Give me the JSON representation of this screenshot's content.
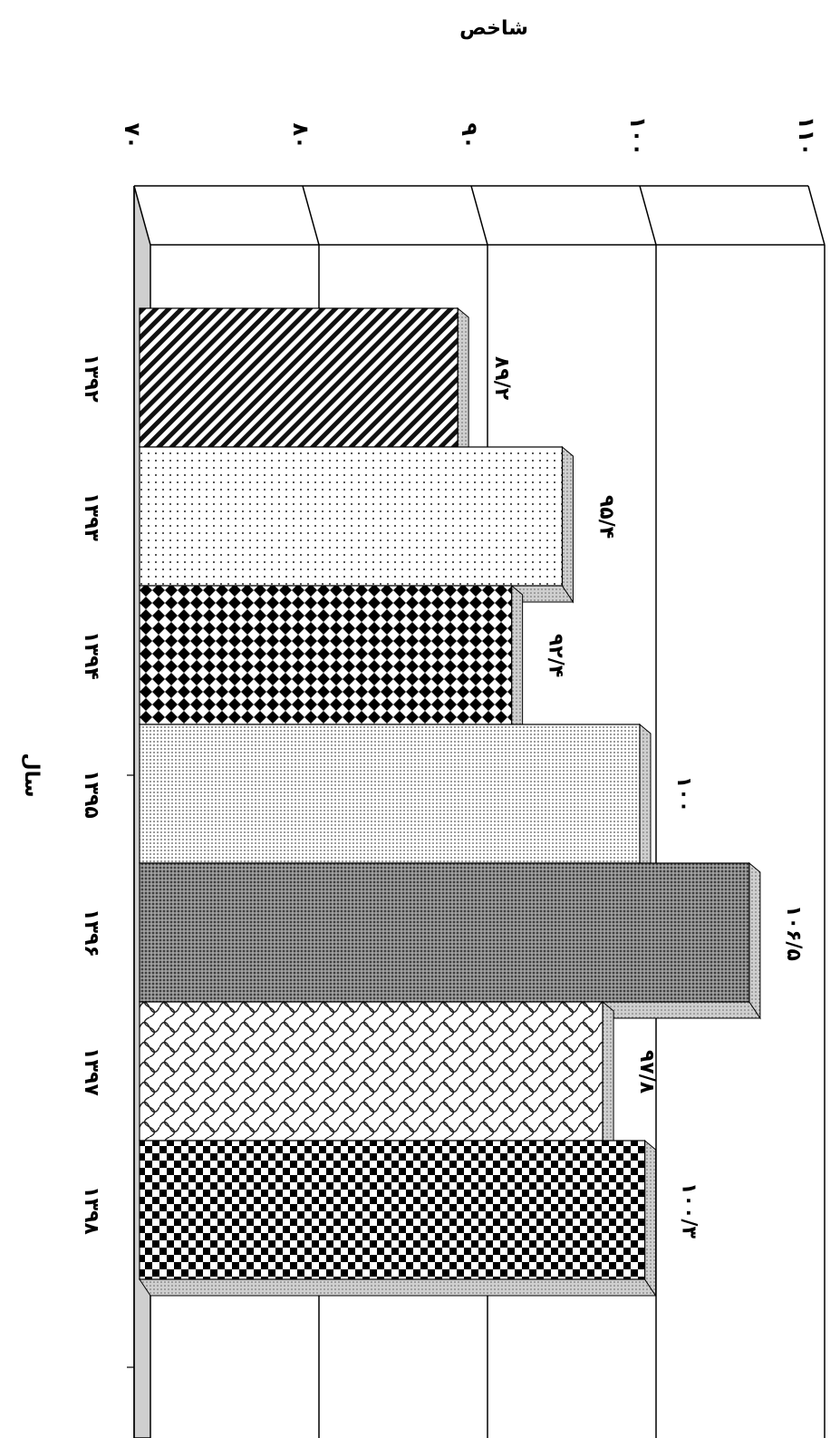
{
  "chart_data": {
    "type": "bar",
    "orientation": "horizontal",
    "categories": [
      "۱۳۹۲",
      "۱۳۹۳",
      "۱۳۹۴",
      "۱۳۹۵",
      "۱۳۹۶",
      "۱۳۹۷",
      "۱۳۹۸"
    ],
    "values": [
      89.2,
      95.4,
      92.4,
      100,
      106.5,
      97.8,
      100.3
    ],
    "data_labels": [
      "۸۹/۲",
      "۹۵/۴",
      "۹۲/۴",
      "۱۰۰",
      "۱۰۶/۵",
      "۹۷/۸",
      "۱۰۰/۳"
    ],
    "value_axis": {
      "label": "شاخص",
      "min": 70,
      "max": 110,
      "ticks": [
        70,
        80,
        90,
        100,
        110
      ],
      "tick_labels": [
        "۷۰",
        "۸۰",
        "۹۰",
        "۱۰۰",
        "۱۱۰"
      ]
    },
    "category_axis": {
      "label": "سال"
    },
    "grid": true,
    "style": "3d",
    "patterns": [
      "diagonal-stripes",
      "sparse-dots",
      "diamonds",
      "dense-dots",
      "dark-mesh",
      "lattice",
      "checker"
    ]
  }
}
